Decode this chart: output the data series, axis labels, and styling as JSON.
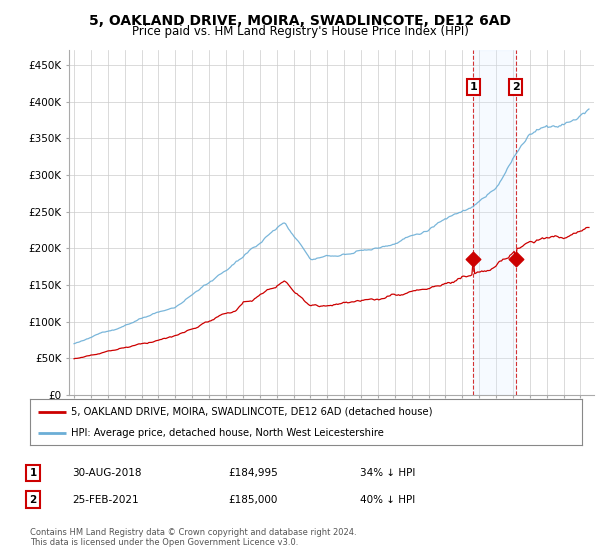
{
  "title": "5, OAKLAND DRIVE, MOIRA, SWADLINCOTE, DE12 6AD",
  "subtitle": "Price paid vs. HM Land Registry's House Price Index (HPI)",
  "legend_property": "5, OAKLAND DRIVE, MOIRA, SWADLINCOTE, DE12 6AD (detached house)",
  "legend_hpi": "HPI: Average price, detached house, North West Leicestershire",
  "footnote": "Contains HM Land Registry data © Crown copyright and database right 2024.\nThis data is licensed under the Open Government Licence v3.0.",
  "sale1_date": "30-AUG-2018",
  "sale1_price": 184995,
  "sale1_label": "34% ↓ HPI",
  "sale2_date": "25-FEB-2021",
  "sale2_price": 185000,
  "sale2_label": "40% ↓ HPI",
  "sale1_year": 2018.66,
  "sale2_year": 2021.15,
  "ylim_min": 0,
  "ylim_max": 470000,
  "yticks": [
    0,
    50000,
    100000,
    150000,
    200000,
    250000,
    300000,
    350000,
    400000,
    450000
  ],
  "ytick_labels": [
    "£0",
    "£50K",
    "£100K",
    "£150K",
    "£200K",
    "£250K",
    "£300K",
    "£350K",
    "£400K",
    "£450K"
  ],
  "hpi_color": "#6baed6",
  "property_color": "#cc0000",
  "shade_color": "#ddeeff",
  "background_color": "#ffffff",
  "grid_color": "#cccccc",
  "title_fontsize": 10,
  "subtitle_fontsize": 8.5,
  "axis_fontsize": 7.5,
  "legend_fontsize": 8
}
